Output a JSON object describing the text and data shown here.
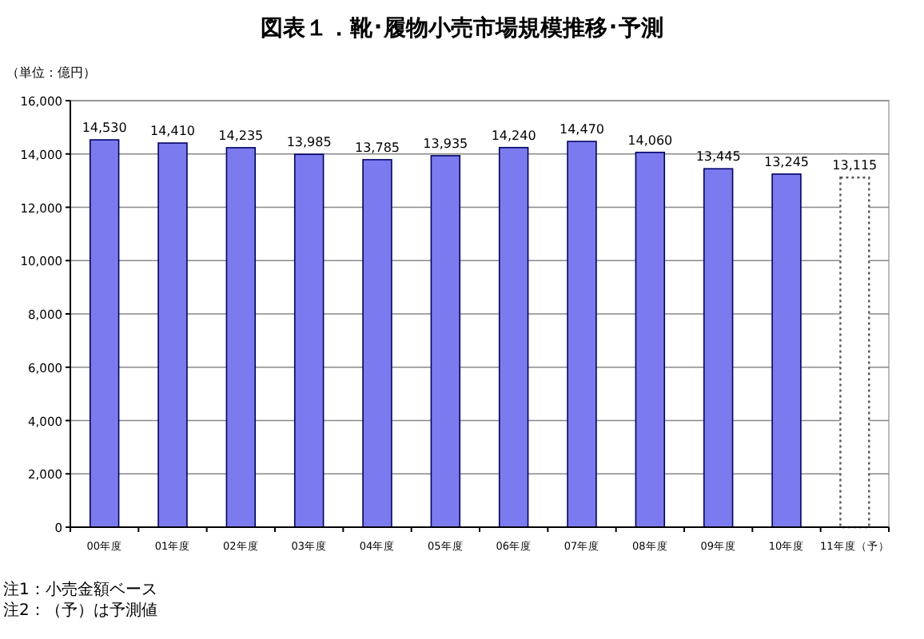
{
  "chart_data": {
    "type": "bar",
    "title": "図表１．靴･履物小売市場規模推移･予測",
    "ylabel": "（単位：億円）",
    "categories": [
      "00年度",
      "01年度",
      "02年度",
      "03年度",
      "04年度",
      "05年度",
      "06年度",
      "07年度",
      "08年度",
      "09年度",
      "10年度",
      "11年度（予）"
    ],
    "values": [
      14530,
      14410,
      14235,
      13985,
      13785,
      13935,
      14240,
      14470,
      14060,
      13445,
      13245,
      13115
    ],
    "value_labels": [
      "14,530",
      "14,410",
      "14,235",
      "13,985",
      "13,785",
      "13,935",
      "14,240",
      "14,470",
      "14,060",
      "13,445",
      "13,245",
      "13,115"
    ],
    "colors": [
      "#7b7bef",
      "#7b7bef",
      "#7b7bef",
      "#7b7bef",
      "#7b7bef",
      "#7b7bef",
      "#7b7bef",
      "#7b7bef",
      "#7b7bef",
      "#7b7bef",
      "#7b7bef",
      "#ffffff"
    ],
    "ylim": [
      0,
      16000
    ],
    "yticks": [
      0,
      {
        "value": 2000,
        "label": "2,000"
      },
      {
        "value": 4000,
        "label": "4,000"
      },
      {
        "value": 6000,
        "label": "6,000"
      },
      {
        "value": 8000,
        "label": "8,000"
      },
      {
        "value": 10000,
        "label": "10,000"
      },
      {
        "value": 12000,
        "label": "12,000"
      },
      {
        "value": 14000,
        "label": "14,000"
      },
      {
        "value": 16000,
        "label": "16,000"
      }
    ],
    "grid": "y",
    "annotations": [
      "注1：小売金額ベース",
      "注2：（予）は予測値"
    ]
  }
}
